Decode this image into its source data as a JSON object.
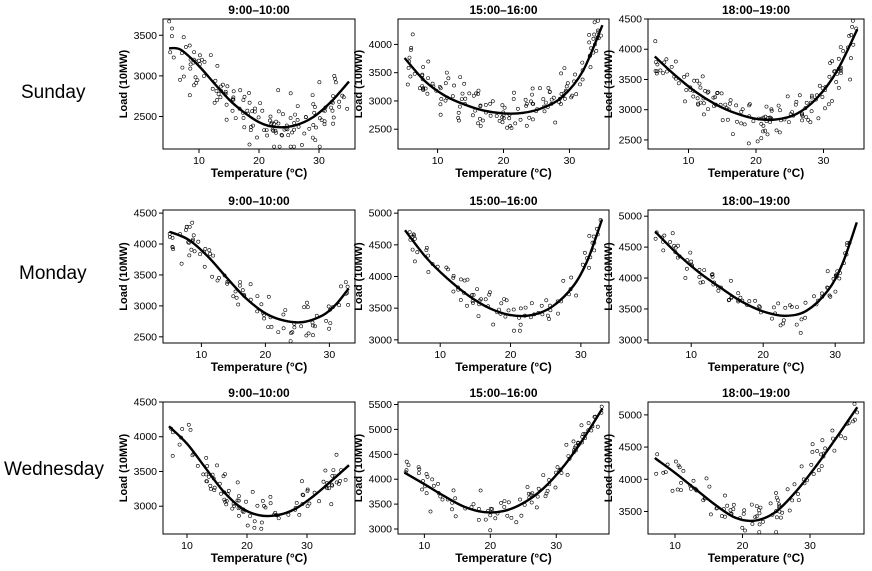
{
  "figure": {
    "row_labels": [
      "Sunday",
      "Monday",
      "Wednesday"
    ],
    "panel_xlabel": "Temperature (°C)",
    "panel_ylabel": "Load (10MW)",
    "colors": {
      "ink": "#000000",
      "background": "#ffffff"
    }
  },
  "chart_data": [
    {
      "type": "scatter",
      "row": "Sunday",
      "title": "9:00–10:00",
      "xlabel": "Temperature (°C)",
      "ylabel": "Load (10MW)",
      "xlim": [
        4,
        36
      ],
      "ylim": [
        2100,
        3700
      ],
      "xticks": [
        10,
        20,
        30
      ],
      "yticks": [
        2500,
        3000,
        3500
      ],
      "fit": {
        "x": [
          5,
          7,
          10,
          13,
          16,
          20,
          23,
          26,
          29,
          32,
          35
        ],
        "y": [
          3340,
          3320,
          3120,
          2870,
          2640,
          2430,
          2370,
          2390,
          2490,
          2680,
          2930
        ]
      },
      "n_points": 150,
      "scatter_sd": 200,
      "seed": 1
    },
    {
      "type": "scatter",
      "row": "Sunday",
      "title": "15:00–16:00",
      "xlabel": "Temperature (°C)",
      "ylabel": "Load (10MW)",
      "xlim": [
        4,
        36
      ],
      "ylim": [
        2150,
        4450
      ],
      "xticks": [
        10,
        20,
        30
      ],
      "yticks": [
        2500,
        3000,
        3500,
        4000
      ],
      "fit": {
        "x": [
          5,
          8,
          11,
          14,
          17,
          20,
          23,
          26,
          29,
          32,
          35
        ],
        "y": [
          3760,
          3360,
          3100,
          2940,
          2830,
          2780,
          2790,
          2880,
          3080,
          3520,
          4340
        ]
      },
      "n_points": 150,
      "scatter_sd": 190,
      "seed": 2
    },
    {
      "type": "scatter",
      "row": "Sunday",
      "title": "18:00–19:00",
      "xlabel": "Temperature (°C)",
      "ylabel": "Load (10MW)",
      "xlim": [
        4,
        36
      ],
      "ylim": [
        2350,
        4500
      ],
      "xticks": [
        10,
        20,
        30
      ],
      "yticks": [
        2500,
        3000,
        3500,
        4000,
        4500
      ],
      "fit": {
        "x": [
          5,
          8,
          11,
          14,
          17,
          20,
          23,
          26,
          29,
          32,
          35
        ],
        "y": [
          3880,
          3570,
          3300,
          3090,
          2940,
          2850,
          2840,
          2930,
          3190,
          3640,
          4330
        ]
      },
      "n_points": 150,
      "scatter_sd": 200,
      "seed": 3
    },
    {
      "type": "scatter",
      "row": "Monday",
      "title": "9:00–10:00",
      "xlabel": "Temperature (°C)",
      "ylabel": "Load (10MW)",
      "xlim": [
        4,
        34
      ],
      "ylim": [
        2400,
        4550
      ],
      "xticks": [
        10,
        20,
        30
      ],
      "yticks": [
        2500,
        3000,
        3500,
        4000,
        4500
      ],
      "fit": {
        "x": [
          5,
          8,
          11,
          14,
          17,
          20,
          23,
          26,
          29,
          31,
          33
        ],
        "y": [
          4200,
          4070,
          3800,
          3450,
          3120,
          2880,
          2760,
          2740,
          2850,
          3020,
          3280
        ]
      },
      "n_points": 90,
      "scatter_sd": 170,
      "seed": 4
    },
    {
      "type": "scatter",
      "row": "Monday",
      "title": "15:00–16:00",
      "xlabel": "Temperature (°C)",
      "ylabel": "Load (10MW)",
      "xlim": [
        4,
        34
      ],
      "ylim": [
        2950,
        5050
      ],
      "xticks": [
        10,
        20,
        30
      ],
      "yticks": [
        3000,
        3500,
        4000,
        4500,
        5000
      ],
      "fit": {
        "x": [
          5,
          8,
          11,
          14,
          17,
          20,
          23,
          26,
          29,
          31,
          33
        ],
        "y": [
          4730,
          4300,
          3970,
          3700,
          3500,
          3390,
          3390,
          3530,
          3860,
          4270,
          4900
        ]
      },
      "n_points": 90,
      "scatter_sd": 130,
      "seed": 5
    },
    {
      "type": "scatter",
      "row": "Monday",
      "title": "18:00–19:00",
      "xlabel": "Temperature (°C)",
      "ylabel": "Load (10MW)",
      "xlim": [
        4,
        34
      ],
      "ylim": [
        2950,
        5100
      ],
      "xticks": [
        10,
        20,
        30
      ],
      "yticks": [
        3000,
        3500,
        4000,
        4500,
        5000
      ],
      "fit": {
        "x": [
          5,
          8,
          11,
          14,
          17,
          20,
          23,
          26,
          29,
          31,
          33
        ],
        "y": [
          4750,
          4400,
          4100,
          3850,
          3620,
          3460,
          3390,
          3470,
          3800,
          4230,
          4900
        ]
      },
      "n_points": 90,
      "scatter_sd": 130,
      "seed": 6
    },
    {
      "type": "scatter",
      "row": "Wednesday",
      "title": "9:00–10:00",
      "xlabel": "Temperature (°C)",
      "ylabel": "Load (10MW)",
      "xlim": [
        6,
        38
      ],
      "ylim": [
        2600,
        4500
      ],
      "xticks": [
        10,
        20,
        30
      ],
      "yticks": [
        3000,
        3500,
        4000,
        4500
      ],
      "fit": {
        "x": [
          7,
          10,
          13,
          16,
          19,
          22,
          25,
          28,
          31,
          34,
          37
        ],
        "y": [
          4150,
          3900,
          3560,
          3220,
          2980,
          2870,
          2870,
          2960,
          3140,
          3360,
          3590
        ]
      },
      "n_points": 100,
      "scatter_sd": 150,
      "seed": 7
    },
    {
      "type": "scatter",
      "row": "Wednesday",
      "title": "15:00–16:00",
      "xlabel": "Temperature (°C)",
      "ylabel": "Load (10MW)",
      "xlim": [
        6,
        38
      ],
      "ylim": [
        2900,
        5550
      ],
      "xticks": [
        10,
        20,
        30
      ],
      "yticks": [
        3000,
        3500,
        4000,
        4500,
        5000,
        5500
      ],
      "fit": {
        "x": [
          7,
          10,
          13,
          16,
          19,
          22,
          25,
          28,
          31,
          34,
          37
        ],
        "y": [
          4130,
          3900,
          3660,
          3450,
          3340,
          3360,
          3520,
          3810,
          4240,
          4790,
          5420
        ]
      },
      "n_points": 100,
      "scatter_sd": 150,
      "seed": 8
    },
    {
      "type": "scatter",
      "row": "Wednesday",
      "title": "18:00–19:00",
      "xlabel": "Temperature (°C)",
      "ylabel": "Load (10MW)",
      "xlim": [
        6,
        38
      ],
      "ylim": [
        3150,
        5200
      ],
      "xticks": [
        10,
        20,
        30
      ],
      "yticks": [
        3500,
        4000,
        4500,
        5000
      ],
      "fit": {
        "x": [
          7,
          10,
          13,
          16,
          19,
          22,
          25,
          28,
          31,
          34,
          37
        ],
        "y": [
          4330,
          4100,
          3850,
          3600,
          3400,
          3360,
          3500,
          3820,
          4220,
          4660,
          5120
        ]
      },
      "n_points": 100,
      "scatter_sd": 150,
      "seed": 9
    }
  ]
}
